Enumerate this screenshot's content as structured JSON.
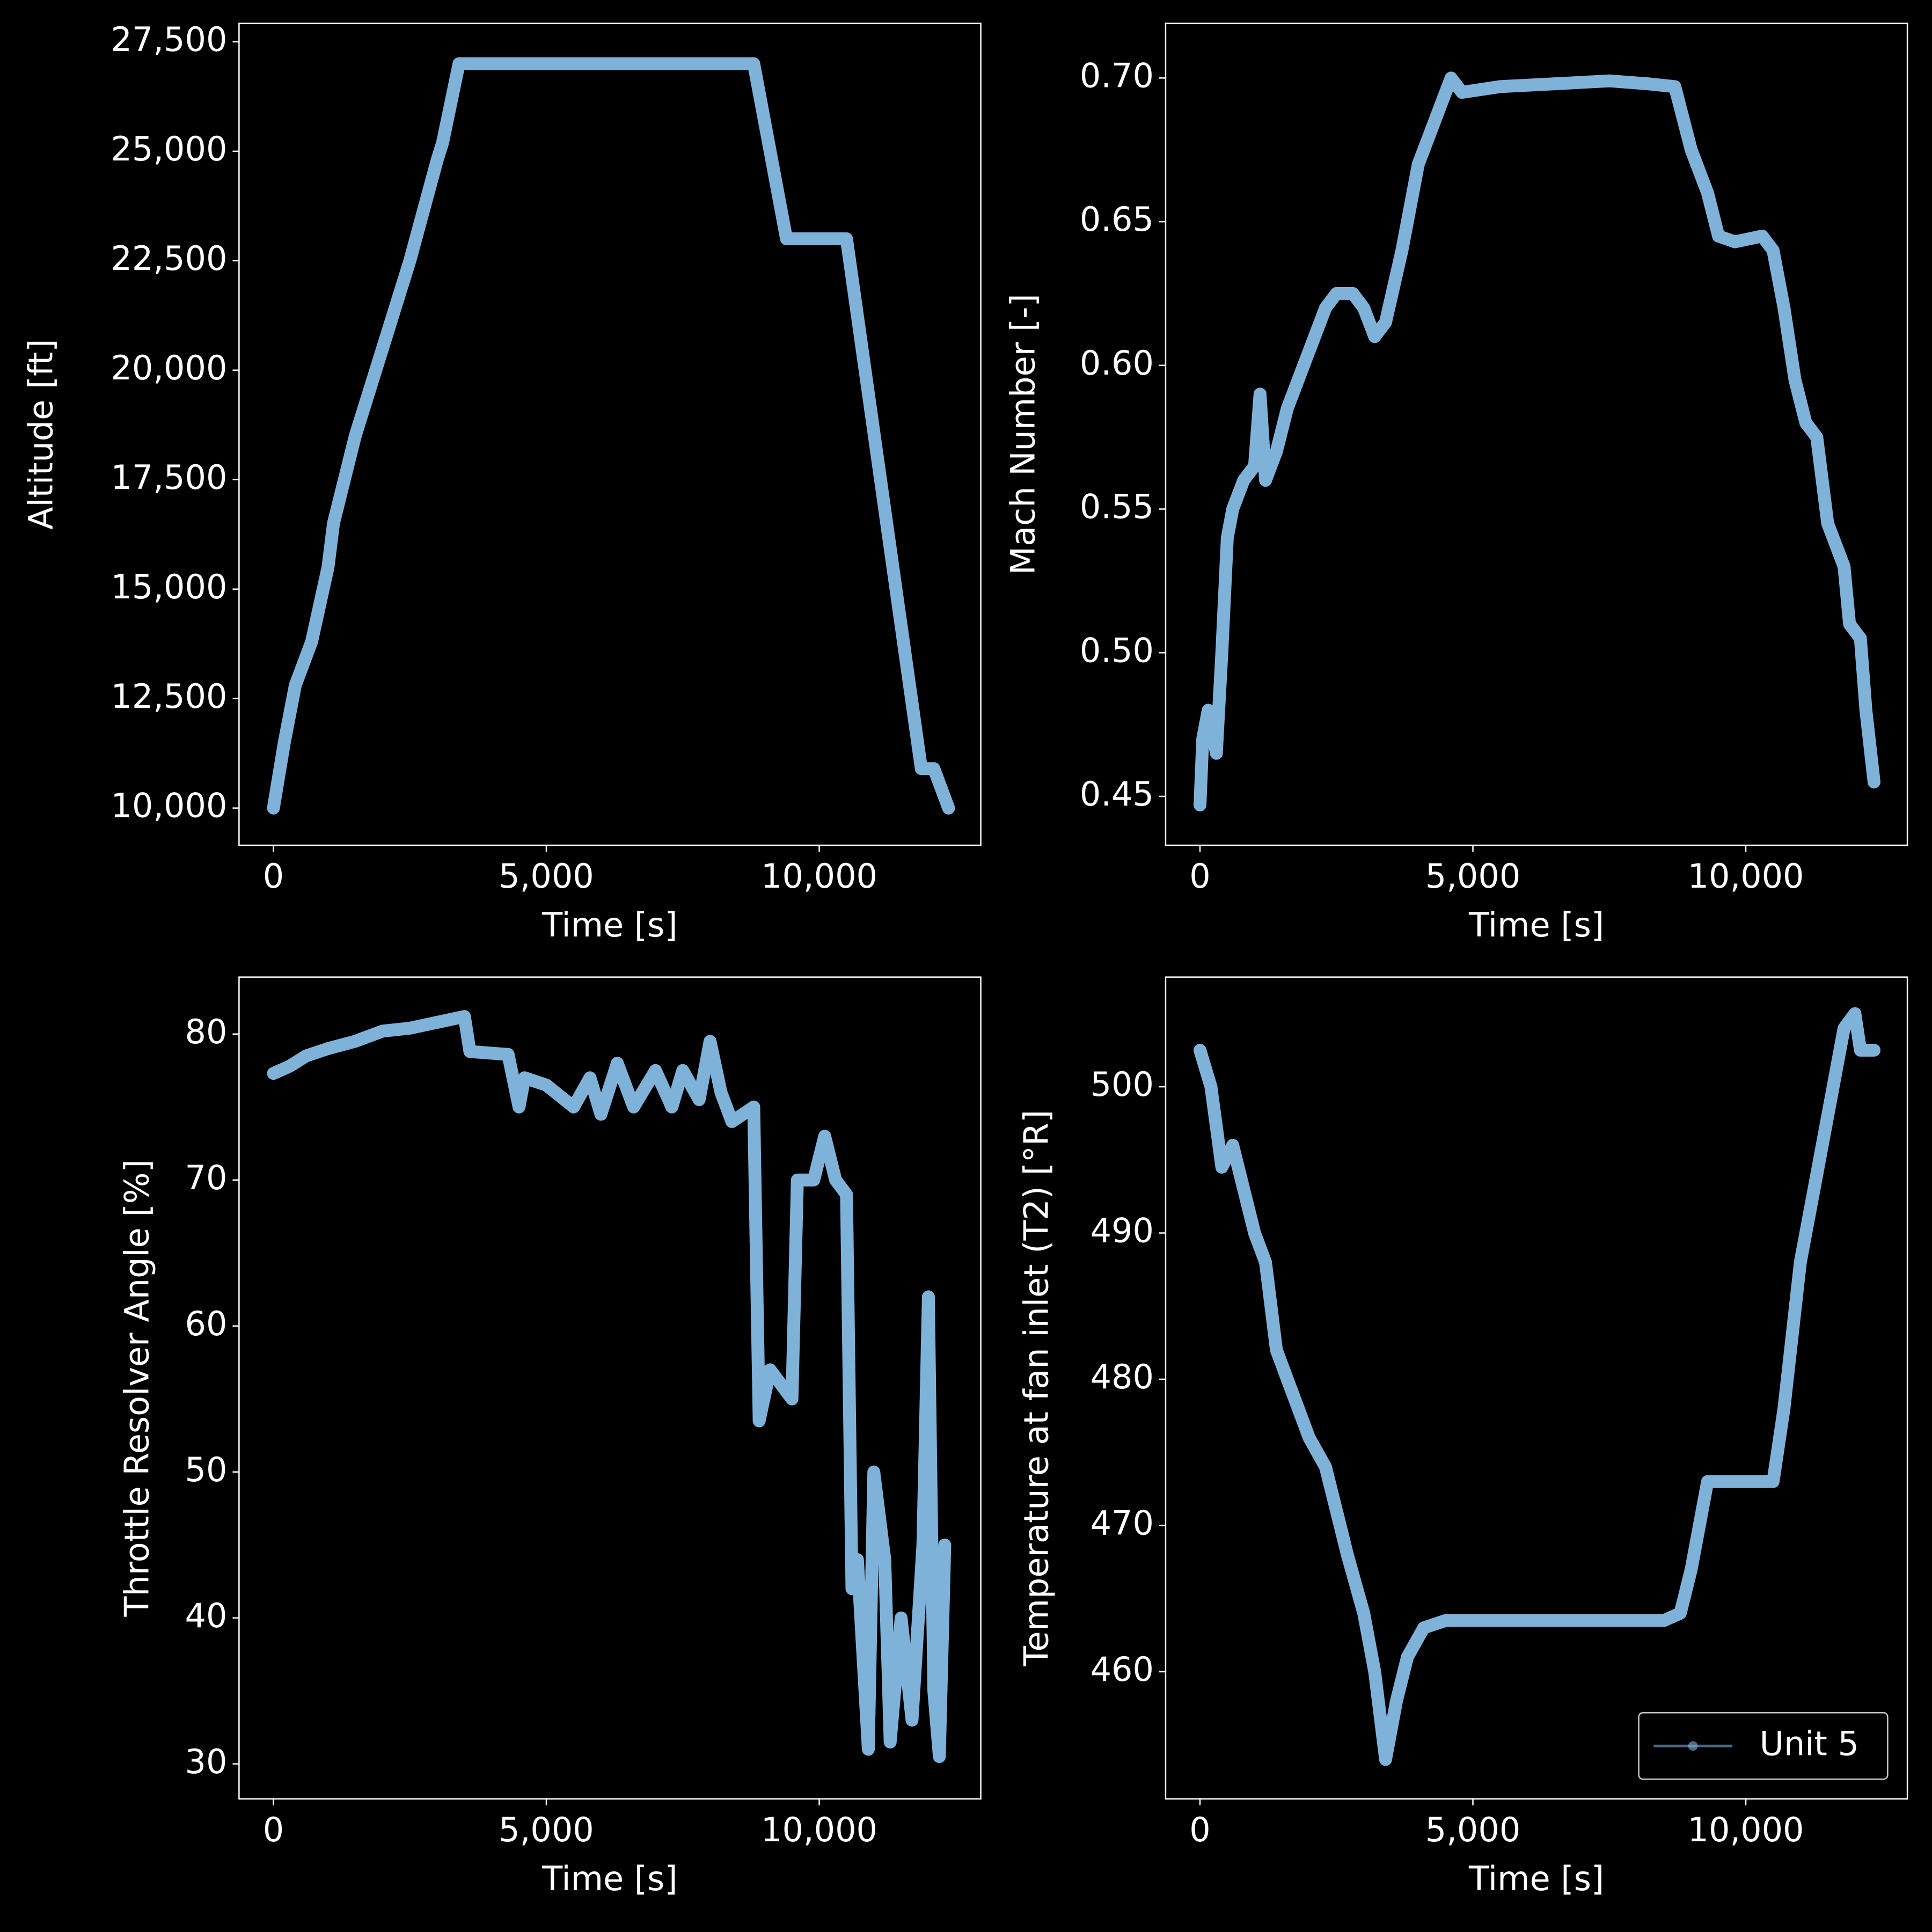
{
  "chart_data": [
    {
      "type": "line",
      "xlabel": "Time [s]",
      "ylabel": "Altitude [ft]",
      "x": [
        0,
        200,
        400,
        700,
        1000,
        1100,
        1500,
        2000,
        2500,
        3000,
        3100,
        3400,
        8800,
        9400,
        10500,
        11870,
        12100,
        12370
      ],
      "series": [
        {
          "color": "#7fb2d9",
          "values": [
            10000,
            11500,
            12800,
            13800,
            15500,
            16500,
            18500,
            20500,
            22500,
            24800,
            25200,
            27000,
            27000,
            23000,
            23000,
            10900,
            10900,
            10000
          ]
        }
      ],
      "xlim": [
        -630,
        12960
      ],
      "ylim": [
        9150,
        27920
      ],
      "xticks": [
        0,
        {
          "value": 5000,
          "label": "5,000"
        },
        {
          "value": 10000,
          "label": "10,000"
        }
      ],
      "yticks": [
        {
          "value": 10000,
          "label": "10,000"
        },
        {
          "value": 12500,
          "label": "12,500"
        },
        {
          "value": 15000,
          "label": "15,000"
        },
        {
          "value": 17500,
          "label": "17,500"
        },
        {
          "value": 20000,
          "label": "20,000"
        },
        {
          "value": 22500,
          "label": "22,500"
        },
        {
          "value": 25000,
          "label": "25,000"
        },
        {
          "value": 27500,
          "label": "27,500"
        }
      ]
    },
    {
      "type": "line",
      "xlabel": "Time [s]",
      "ylabel": "Mach Number [-]",
      "x": [
        0,
        50,
        150,
        300,
        400,
        500,
        600,
        800,
        1000,
        1100,
        1200,
        1400,
        1600,
        1900,
        2100,
        2300,
        2500,
        2800,
        3000,
        3200,
        3400,
        3700,
        4000,
        4200,
        4400,
        4600,
        4800,
        5500,
        6500,
        7500,
        8200,
        8700,
        9000,
        9300,
        9500,
        9800,
        10300,
        10500,
        10700,
        10900,
        11100,
        11300,
        11500,
        11800,
        11900,
        12100,
        12200,
        12350
      ],
      "series": [
        {
          "color": "#7fb2d9",
          "values": [
            0.447,
            0.47,
            0.48,
            0.465,
            0.5,
            0.54,
            0.55,
            0.56,
            0.565,
            0.59,
            0.56,
            0.57,
            0.585,
            0.6,
            0.61,
            0.62,
            0.625,
            0.625,
            0.62,
            0.61,
            0.615,
            0.64,
            0.67,
            0.68,
            0.69,
            0.7,
            0.695,
            0.697,
            0.698,
            0.699,
            0.698,
            0.697,
            0.675,
            0.66,
            0.645,
            0.643,
            0.645,
            0.64,
            0.62,
            0.595,
            0.58,
            0.575,
            0.545,
            0.53,
            0.51,
            0.505,
            0.48,
            0.455
          ]
        }
      ],
      "xlim": [
        -630,
        12960
      ],
      "ylim": [
        0.433,
        0.719
      ],
      "xticks": [
        0,
        {
          "value": 5000,
          "label": "5,000"
        },
        {
          "value": 10000,
          "label": "10,000"
        }
      ],
      "yticks": [
        0.45,
        {
          "value": 0.5,
          "label": "0.50"
        },
        0.55,
        {
          "value": 0.6,
          "label": "0.60"
        },
        0.65,
        {
          "value": 0.7,
          "label": "0.70"
        }
      ]
    },
    {
      "type": "line",
      "xlabel": "Time [s]",
      "ylabel": "Throttle Resolver Angle [%]",
      "x": [
        0,
        300,
        600,
        1000,
        1500,
        2000,
        2500,
        3000,
        3500,
        3600,
        4300,
        4500,
        4600,
        5000,
        5500,
        5800,
        6000,
        6300,
        6600,
        7000,
        7300,
        7500,
        7800,
        8000,
        8200,
        8400,
        8800,
        8900,
        9100,
        9500,
        9600,
        9900,
        10100,
        10300,
        10500,
        10600,
        10700,
        10900,
        11000,
        11200,
        11300,
        11500,
        11700,
        11900,
        12000,
        12100,
        12200,
        12300
      ],
      "series": [
        {
          "color": "#7fb2d9",
          "values": [
            77.3,
            77.8,
            78.5,
            79.0,
            79.5,
            80.2,
            80.4,
            80.8,
            81.2,
            78.8,
            78.6,
            75,
            77,
            76.5,
            75,
            77,
            74.5,
            78,
            75,
            77.5,
            75,
            77.5,
            75.5,
            79.5,
            76,
            74,
            75,
            53.5,
            57,
            55,
            70,
            70,
            73,
            70,
            69,
            42,
            44,
            31,
            50,
            44,
            31.5,
            40,
            33,
            45,
            62,
            35,
            30.5,
            45
          ]
        }
      ],
      "xlim": [
        -630,
        12960
      ],
      "ylim": [
        27.6,
        83.9
      ],
      "xticks": [
        0,
        {
          "value": 5000,
          "label": "5,000"
        },
        {
          "value": 10000,
          "label": "10,000"
        }
      ],
      "yticks": [
        30,
        40,
        50,
        60,
        70,
        80
      ]
    },
    {
      "type": "line",
      "xlabel": "Time [s]",
      "ylabel": "Temperature at fan inlet (T2) [°R]",
      "x": [
        0,
        200,
        400,
        600,
        800,
        1000,
        1200,
        1400,
        1600,
        1800,
        2000,
        2300,
        2500,
        2700,
        3000,
        3200,
        3400,
        3600,
        3800,
        4100,
        4500,
        5500,
        6500,
        7500,
        8500,
        8800,
        9000,
        9300,
        10000,
        10500,
        10700,
        11000,
        11300,
        11600,
        11800,
        12000,
        12100,
        12350
      ],
      "series": [
        {
          "name": "Unit 5",
          "color": "#7fb2d9",
          "values": [
            502.5,
            500,
            494.5,
            496,
            493,
            490,
            488,
            482,
            480,
            478,
            476,
            474,
            471,
            468,
            464,
            460,
            454,
            458,
            461,
            463,
            463.5,
            463.5,
            463.5,
            463.5,
            463.5,
            464,
            467,
            473,
            473,
            473,
            478,
            488,
            494,
            500,
            504,
            505,
            502.5,
            502.5
          ]
        }
      ],
      "xlim": [
        -630,
        12960
      ],
      "ylim": [
        451.3,
        507.5
      ],
      "xticks": [
        0,
        {
          "value": 5000,
          "label": "5,000"
        },
        {
          "value": 10000,
          "label": "10,000"
        }
      ],
      "yticks": [
        460,
        470,
        480,
        490,
        500
      ],
      "legend": "lower right"
    }
  ]
}
